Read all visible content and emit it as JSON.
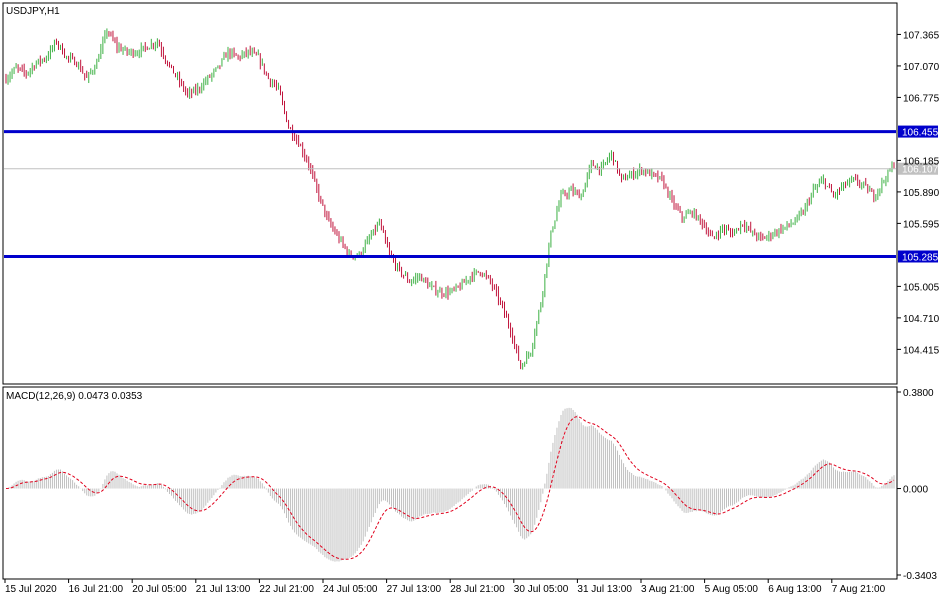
{
  "chart_data": [
    {
      "type": "candlestick",
      "title": "USDJPY,H1",
      "symbol": "USDJPY",
      "timeframe": "H1",
      "ylim": [
        104.1,
        107.65
      ],
      "yticks": [
        "107.365",
        "107.070",
        "106.775",
        "106.185",
        "105.890",
        "105.595",
        "105.005",
        "104.710",
        "104.415"
      ],
      "xticks": [
        "15 Jul 2020",
        "16 Jul 21:00",
        "20 Jul 05:00",
        "21 Jul 13:00",
        "22 Jul 21:00",
        "24 Jul 05:00",
        "27 Jul 13:00",
        "28 Jul 21:00",
        "30 Jul 05:00",
        "31 Jul 13:00",
        "3 Aug 21:00",
        "5 Aug 05:00",
        "6 Aug 13:00",
        "7 Aug 21:00"
      ],
      "horizontal_lines": [
        {
          "label": "106.455",
          "value": 106.455,
          "color": "#0000cc"
        },
        {
          "label": "105.285",
          "value": 105.285,
          "color": "#0000cc"
        }
      ],
      "current_price": {
        "label": "106.107",
        "value": 106.107
      },
      "colors": {
        "bull": "#3cb043",
        "bear": "#c0143c",
        "line": "#0000cc",
        "current": "#c0c0c0"
      },
      "price_path": [
        [
          0,
          106.95
        ],
        [
          5,
          107.05
        ],
        [
          10,
          107.0
        ],
        [
          15,
          107.1
        ],
        [
          20,
          107.15
        ],
        [
          25,
          107.3
        ],
        [
          30,
          107.15
        ],
        [
          35,
          107.1
        ],
        [
          40,
          106.95
        ],
        [
          45,
          107.1
        ],
        [
          50,
          107.4
        ],
        [
          55,
          107.25
        ],
        [
          60,
          107.2
        ],
        [
          65,
          107.2
        ],
        [
          70,
          107.25
        ],
        [
          75,
          107.3
        ],
        [
          80,
          107.1
        ],
        [
          85,
          106.95
        ],
        [
          90,
          106.8
        ],
        [
          95,
          106.85
        ],
        [
          100,
          106.95
        ],
        [
          105,
          107.05
        ],
        [
          110,
          107.2
        ],
        [
          115,
          107.15
        ],
        [
          120,
          107.2
        ],
        [
          125,
          107.15
        ],
        [
          130,
          106.95
        ],
        [
          135,
          106.85
        ],
        [
          140,
          106.5
        ],
        [
          145,
          106.35
        ],
        [
          150,
          106.15
        ],
        [
          155,
          105.85
        ],
        [
          160,
          105.6
        ],
        [
          165,
          105.45
        ],
        [
          170,
          105.3
        ],
        [
          175,
          105.3
        ],
        [
          180,
          105.45
        ],
        [
          185,
          105.6
        ],
        [
          190,
          105.3
        ],
        [
          195,
          105.15
        ],
        [
          200,
          105.05
        ],
        [
          205,
          105.1
        ],
        [
          210,
          105.0
        ],
        [
          215,
          104.95
        ],
        [
          220,
          104.95
        ],
        [
          225,
          105.0
        ],
        [
          230,
          105.1
        ],
        [
          235,
          105.15
        ],
        [
          240,
          105.05
        ],
        [
          245,
          104.85
        ],
        [
          250,
          104.6
        ],
        [
          255,
          104.25
        ],
        [
          260,
          104.4
        ],
        [
          265,
          104.85
        ],
        [
          270,
          105.5
        ],
        [
          275,
          105.85
        ],
        [
          280,
          105.9
        ],
        [
          285,
          105.85
        ],
        [
          290,
          106.15
        ],
        [
          295,
          106.1
        ],
        [
          300,
          106.25
        ],
        [
          305,
          106.0
        ],
        [
          310,
          106.05
        ],
        [
          315,
          106.1
        ],
        [
          320,
          106.05
        ],
        [
          325,
          106.0
        ],
        [
          330,
          105.8
        ],
        [
          335,
          105.65
        ],
        [
          340,
          105.7
        ],
        [
          345,
          105.6
        ],
        [
          350,
          105.45
        ],
        [
          355,
          105.55
        ],
        [
          360,
          105.5
        ],
        [
          365,
          105.6
        ],
        [
          370,
          105.5
        ],
        [
          375,
          105.45
        ],
        [
          380,
          105.5
        ],
        [
          385,
          105.55
        ],
        [
          390,
          105.6
        ],
        [
          395,
          105.7
        ],
        [
          400,
          105.9
        ],
        [
          405,
          106.0
        ],
        [
          410,
          105.85
        ],
        [
          415,
          105.95
        ],
        [
          420,
          106.0
        ],
        [
          425,
          105.95
        ],
        [
          430,
          105.85
        ],
        [
          435,
          106.0
        ],
        [
          440,
          106.15
        ]
      ]
    },
    {
      "type": "macd",
      "title": "MACD(12,26,9) 0.0473 0.0353",
      "name": "MACD(12,26,9)",
      "params": [
        12,
        26,
        9
      ],
      "main_value": "0.0473",
      "signal_value": "0.0353",
      "ylim": [
        -0.3403,
        0.38
      ],
      "yticks": [
        "0.3800",
        "0.000",
        "-0.3403"
      ],
      "colors": {
        "histogram": "#c0c0c0",
        "signal": "#e0001c"
      }
    }
  ]
}
